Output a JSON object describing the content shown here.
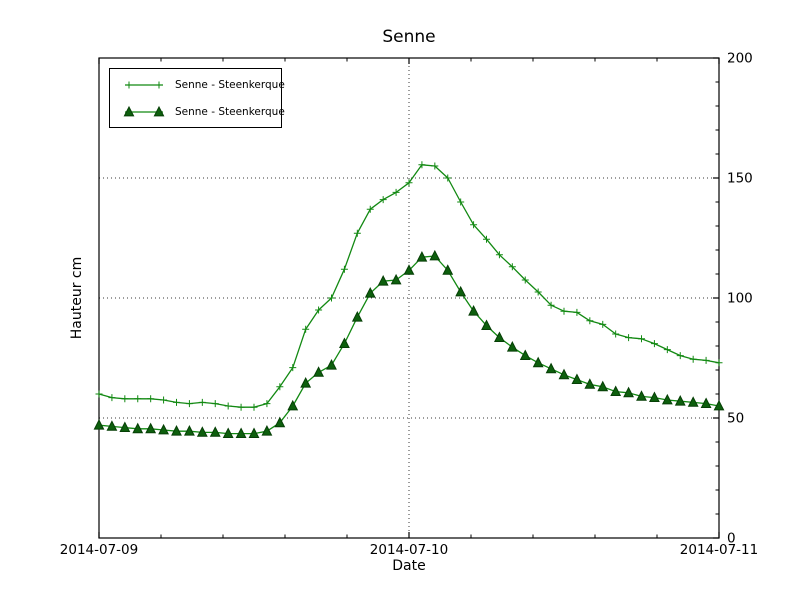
{
  "title": "Senne",
  "axes": {
    "xlabel": "Date",
    "ylabel": "Hauteur cm",
    "x_tick_labels": [
      "2014-07-09",
      "2014-07-10",
      "2014-07-11"
    ],
    "x_major_hours": [
      0,
      24,
      48
    ],
    "x_minor_step_hours": 4.8,
    "y_tick_labels": [
      "0",
      "50",
      "100",
      "150",
      "200"
    ],
    "y_major_values": [
      0,
      50,
      100,
      150,
      200
    ],
    "y_minor_step": 10,
    "grid_y_values": [
      50,
      100,
      150
    ],
    "grid_x_hours": [
      24
    ],
    "ylim": [
      0,
      200
    ],
    "xlim_hours": [
      0,
      48
    ]
  },
  "legend": {
    "entries": [
      {
        "label": "Senne - Steenkerque",
        "marker": "plus"
      },
      {
        "label": "Senne - Steenkerque",
        "marker": "triangle"
      }
    ]
  },
  "colors": {
    "line": "#128912",
    "triangle_fill": "#0d5f0d",
    "triangle_edge": "#063f06",
    "grid": "#3a3a3a",
    "frame": "#000000",
    "text": "#000000"
  },
  "chart_data": {
    "type": "line",
    "title": "Senne",
    "xlabel": "Date",
    "ylabel": "Hauteur cm",
    "x_unit": "hours since 2014-07-09 00:00",
    "x_hours": [
      0,
      1,
      2,
      3,
      4,
      5,
      6,
      7,
      8,
      9,
      10,
      11,
      12,
      13,
      14,
      15,
      16,
      17,
      18,
      19,
      20,
      21,
      22,
      23,
      24,
      25,
      26,
      27,
      28,
      29,
      30,
      31,
      32,
      33,
      34,
      35,
      36,
      37,
      38,
      39,
      40,
      41,
      42,
      43,
      44,
      45,
      46,
      47,
      48
    ],
    "series": [
      {
        "name": "Senne - Steenkerque",
        "marker": "plus",
        "values": [
          60,
          58.5,
          58,
          58,
          58,
          57.5,
          56.5,
          56,
          56.5,
          56,
          55,
          54.5,
          54.5,
          56,
          63,
          71,
          87,
          95,
          100,
          112,
          127,
          137,
          141,
          144,
          148,
          155.5,
          155,
          150,
          140,
          130.5,
          124.5,
          118,
          113,
          107.5,
          102.5,
          97,
          94.5,
          94,
          90.5,
          89,
          85,
          83.5,
          83,
          81,
          78.5,
          76,
          74.5,
          74,
          73
        ]
      },
      {
        "name": "Senne - Steenkerque",
        "marker": "triangle",
        "values": [
          47,
          46.5,
          46,
          45.5,
          45.5,
          45,
          44.5,
          44.5,
          44,
          44,
          43.5,
          43.5,
          43.5,
          44.5,
          48,
          55,
          64.5,
          69,
          72,
          81,
          92,
          102,
          107,
          107.5,
          111.5,
          117,
          117.5,
          111.5,
          102.5,
          94.5,
          88.5,
          83.5,
          79.5,
          76,
          73,
          70.5,
          68,
          66,
          64,
          63,
          61,
          60.5,
          59,
          58.5,
          57.5,
          57,
          56.5,
          56,
          55
        ]
      }
    ],
    "ylim": [
      0,
      200
    ],
    "grid": "dotted, y at 50/100/150 and x at 2014-07-10",
    "legend_position": "upper left"
  }
}
